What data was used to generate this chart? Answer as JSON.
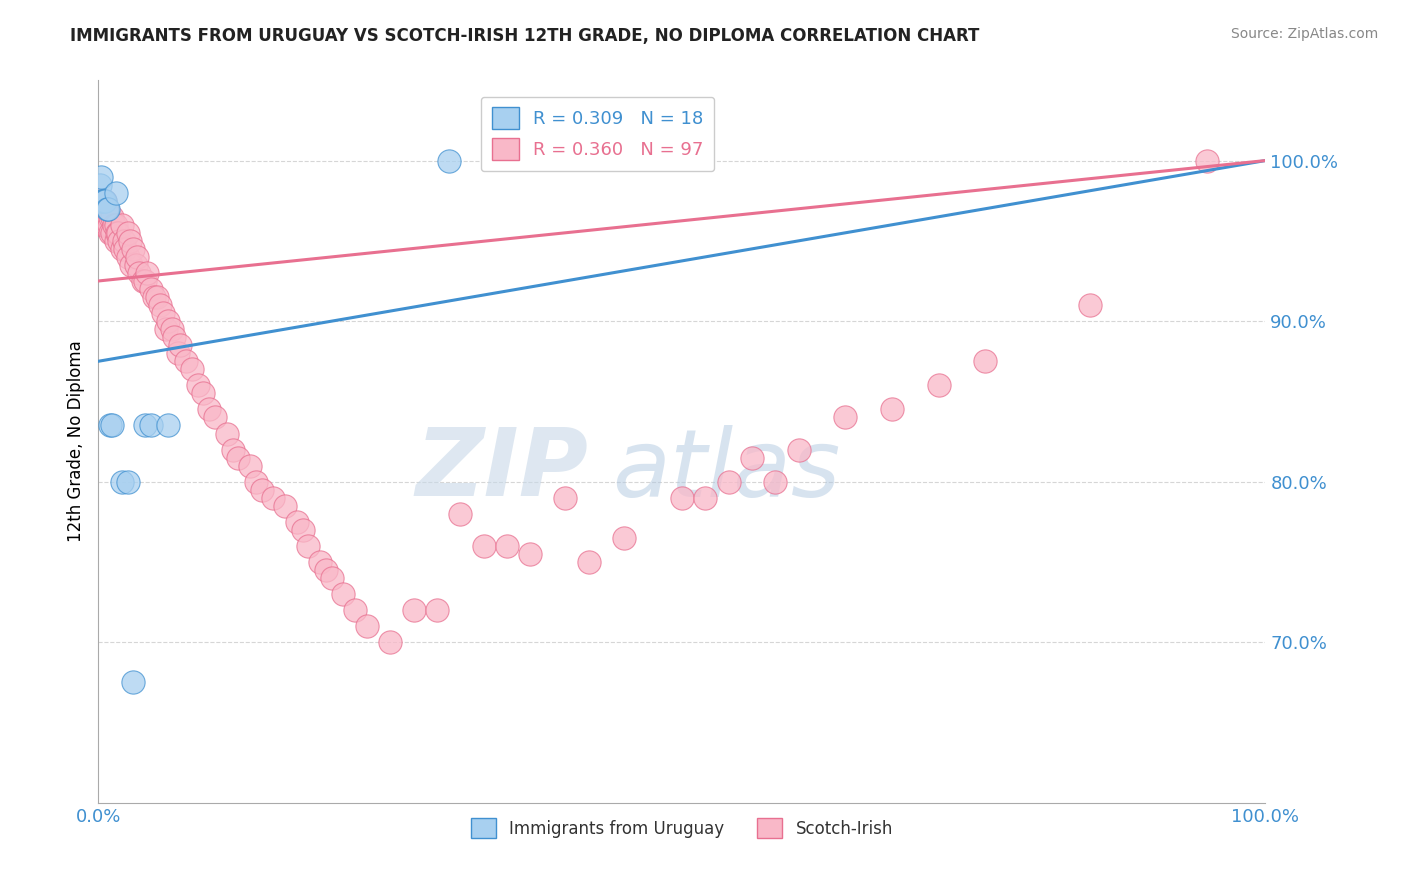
{
  "title": "IMMIGRANTS FROM URUGUAY VS SCOTCH-IRISH 12TH GRADE, NO DIPLOMA CORRELATION CHART",
  "source": "Source: ZipAtlas.com",
  "ylabel": "12th Grade, No Diploma",
  "ytick_labels": [
    "70.0%",
    "80.0%",
    "90.0%",
    "100.0%"
  ],
  "ytick_values": [
    0.7,
    0.8,
    0.9,
    1.0
  ],
  "legend_blue": "R = 0.309   N = 18",
  "legend_pink": "R = 0.360   N = 97",
  "legend_label_blue": "Immigrants from Uruguay",
  "legend_label_pink": "Scotch-Irish",
  "blue_color": "#a8d0f0",
  "pink_color": "#f9b8c8",
  "blue_edge_color": "#4090d0",
  "pink_edge_color": "#e87090",
  "blue_line_color": "#4090d0",
  "pink_line_color": "#e87090",
  "legend_blue_box": "#a8d0f0",
  "legend_pink_box": "#f9b8c8",
  "blue_scatter_x": [
    0.001,
    0.002,
    0.003,
    0.004,
    0.005,
    0.006,
    0.007,
    0.008,
    0.01,
    0.012,
    0.015,
    0.02,
    0.025,
    0.03,
    0.04,
    0.045,
    0.06,
    0.3
  ],
  "blue_scatter_y": [
    0.985,
    0.99,
    0.975,
    0.975,
    0.975,
    0.975,
    0.97,
    0.97,
    0.835,
    0.835,
    0.98,
    0.8,
    0.8,
    0.675,
    0.835,
    0.835,
    0.835,
    1.0
  ],
  "pink_scatter_x": [
    0.001,
    0.001,
    0.002,
    0.002,
    0.003,
    0.003,
    0.004,
    0.004,
    0.005,
    0.005,
    0.006,
    0.006,
    0.007,
    0.007,
    0.008,
    0.009,
    0.01,
    0.01,
    0.012,
    0.012,
    0.013,
    0.015,
    0.015,
    0.016,
    0.017,
    0.018,
    0.02,
    0.02,
    0.022,
    0.023,
    0.025,
    0.025,
    0.027,
    0.028,
    0.03,
    0.032,
    0.033,
    0.035,
    0.038,
    0.04,
    0.042,
    0.045,
    0.048,
    0.05,
    0.053,
    0.055,
    0.058,
    0.06,
    0.063,
    0.065,
    0.068,
    0.07,
    0.075,
    0.08,
    0.085,
    0.09,
    0.095,
    0.1,
    0.11,
    0.115,
    0.12,
    0.13,
    0.135,
    0.14,
    0.15,
    0.16,
    0.17,
    0.175,
    0.18,
    0.19,
    0.195,
    0.2,
    0.21,
    0.22,
    0.23,
    0.25,
    0.27,
    0.29,
    0.31,
    0.33,
    0.35,
    0.37,
    0.4,
    0.42,
    0.45,
    0.5,
    0.52,
    0.54,
    0.56,
    0.58,
    0.6,
    0.64,
    0.68,
    0.72,
    0.76,
    0.85,
    0.95
  ],
  "pink_scatter_y": [
    0.975,
    0.97,
    0.975,
    0.965,
    0.975,
    0.965,
    0.975,
    0.96,
    0.97,
    0.96,
    0.975,
    0.96,
    0.97,
    0.96,
    0.965,
    0.96,
    0.965,
    0.955,
    0.965,
    0.955,
    0.96,
    0.96,
    0.95,
    0.955,
    0.955,
    0.95,
    0.96,
    0.945,
    0.95,
    0.945,
    0.955,
    0.94,
    0.95,
    0.935,
    0.945,
    0.935,
    0.94,
    0.93,
    0.925,
    0.925,
    0.93,
    0.92,
    0.915,
    0.915,
    0.91,
    0.905,
    0.895,
    0.9,
    0.895,
    0.89,
    0.88,
    0.885,
    0.875,
    0.87,
    0.86,
    0.855,
    0.845,
    0.84,
    0.83,
    0.82,
    0.815,
    0.81,
    0.8,
    0.795,
    0.79,
    0.785,
    0.775,
    0.77,
    0.76,
    0.75,
    0.745,
    0.74,
    0.73,
    0.72,
    0.71,
    0.7,
    0.72,
    0.72,
    0.78,
    0.76,
    0.76,
    0.755,
    0.79,
    0.75,
    0.765,
    0.79,
    0.79,
    0.8,
    0.815,
    0.8,
    0.82,
    0.84,
    0.845,
    0.86,
    0.875,
    0.91,
    1.0
  ],
  "blue_line_start_y": 0.875,
  "blue_line_end_y": 1.0,
  "pink_line_start_y": 0.925,
  "pink_line_end_y": 1.0,
  "x_min": 0.0,
  "x_max": 1.0,
  "y_min": 0.6,
  "y_max": 1.05,
  "watermark_zip": "ZIP",
  "watermark_atlas": "atlas",
  "background_color": "#ffffff",
  "grid_color": "#bbbbbb",
  "title_color": "#222222",
  "ytick_color": "#4090d0"
}
